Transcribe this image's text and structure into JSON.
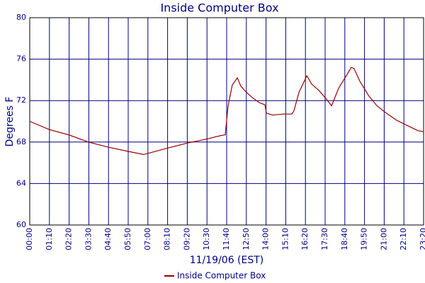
{
  "chart_data": {
    "type": "line",
    "title": "Inside Computer Box",
    "x_label": "11/19/06 (EST)",
    "y_label": "Degrees F",
    "x": [
      0,
      70,
      138,
      209,
      280,
      350,
      405,
      488,
      559,
      630,
      675,
      695,
      705,
      720,
      738,
      750,
      770,
      791,
      816,
      836,
      841,
      864,
      901,
      932,
      939,
      957,
      985,
      1002,
      1027,
      1053,
      1073,
      1098,
      1123,
      1143,
      1153,
      1173,
      1204,
      1234,
      1267,
      1304,
      1342,
      1380,
      1400
    ],
    "series": [
      {
        "name": "Inside Computer Box",
        "color": "#990000",
        "values": [
          70.0,
          69.2,
          68.7,
          68.0,
          67.5,
          67.1,
          66.8,
          67.4,
          67.9,
          68.3,
          68.6,
          68.7,
          71.5,
          73.5,
          74.2,
          73.4,
          72.8,
          72.3,
          71.8,
          71.6,
          70.8,
          70.6,
          70.7,
          70.7,
          71.0,
          72.8,
          74.4,
          73.6,
          73.0,
          72.2,
          71.5,
          73.2,
          74.3,
          75.2,
          75.1,
          73.9,
          72.5,
          71.5,
          70.8,
          70.1,
          69.6,
          69.1,
          69.0
        ]
      }
    ],
    "xlim": [
      0,
      1400
    ],
    "xticks": [
      {
        "value": 0,
        "label": "00:00"
      },
      {
        "value": 70,
        "label": "01:10"
      },
      {
        "value": 140,
        "label": "02:20"
      },
      {
        "value": 210,
        "label": "03:30"
      },
      {
        "value": 280,
        "label": "04:40"
      },
      {
        "value": 350,
        "label": "05:50"
      },
      {
        "value": 420,
        "label": "07:00"
      },
      {
        "value": 490,
        "label": "08:10"
      },
      {
        "value": 560,
        "label": "09:20"
      },
      {
        "value": 630,
        "label": "10:30"
      },
      {
        "value": 700,
        "label": "11:40"
      },
      {
        "value": 770,
        "label": "12:50"
      },
      {
        "value": 840,
        "label": "14:00"
      },
      {
        "value": 910,
        "label": "15:10"
      },
      {
        "value": 980,
        "label": "16:20"
      },
      {
        "value": 1050,
        "label": "17:30"
      },
      {
        "value": 1120,
        "label": "18:40"
      },
      {
        "value": 1190,
        "label": "19:50"
      },
      {
        "value": 1260,
        "label": "21:00"
      },
      {
        "value": 1330,
        "label": "22:10"
      },
      {
        "value": 1400,
        "label": "23:20"
      }
    ],
    "ylim": [
      60,
      80
    ],
    "yticks": [
      60,
      64,
      68,
      72,
      76,
      80
    ],
    "grid": true,
    "legend": "bottom"
  }
}
